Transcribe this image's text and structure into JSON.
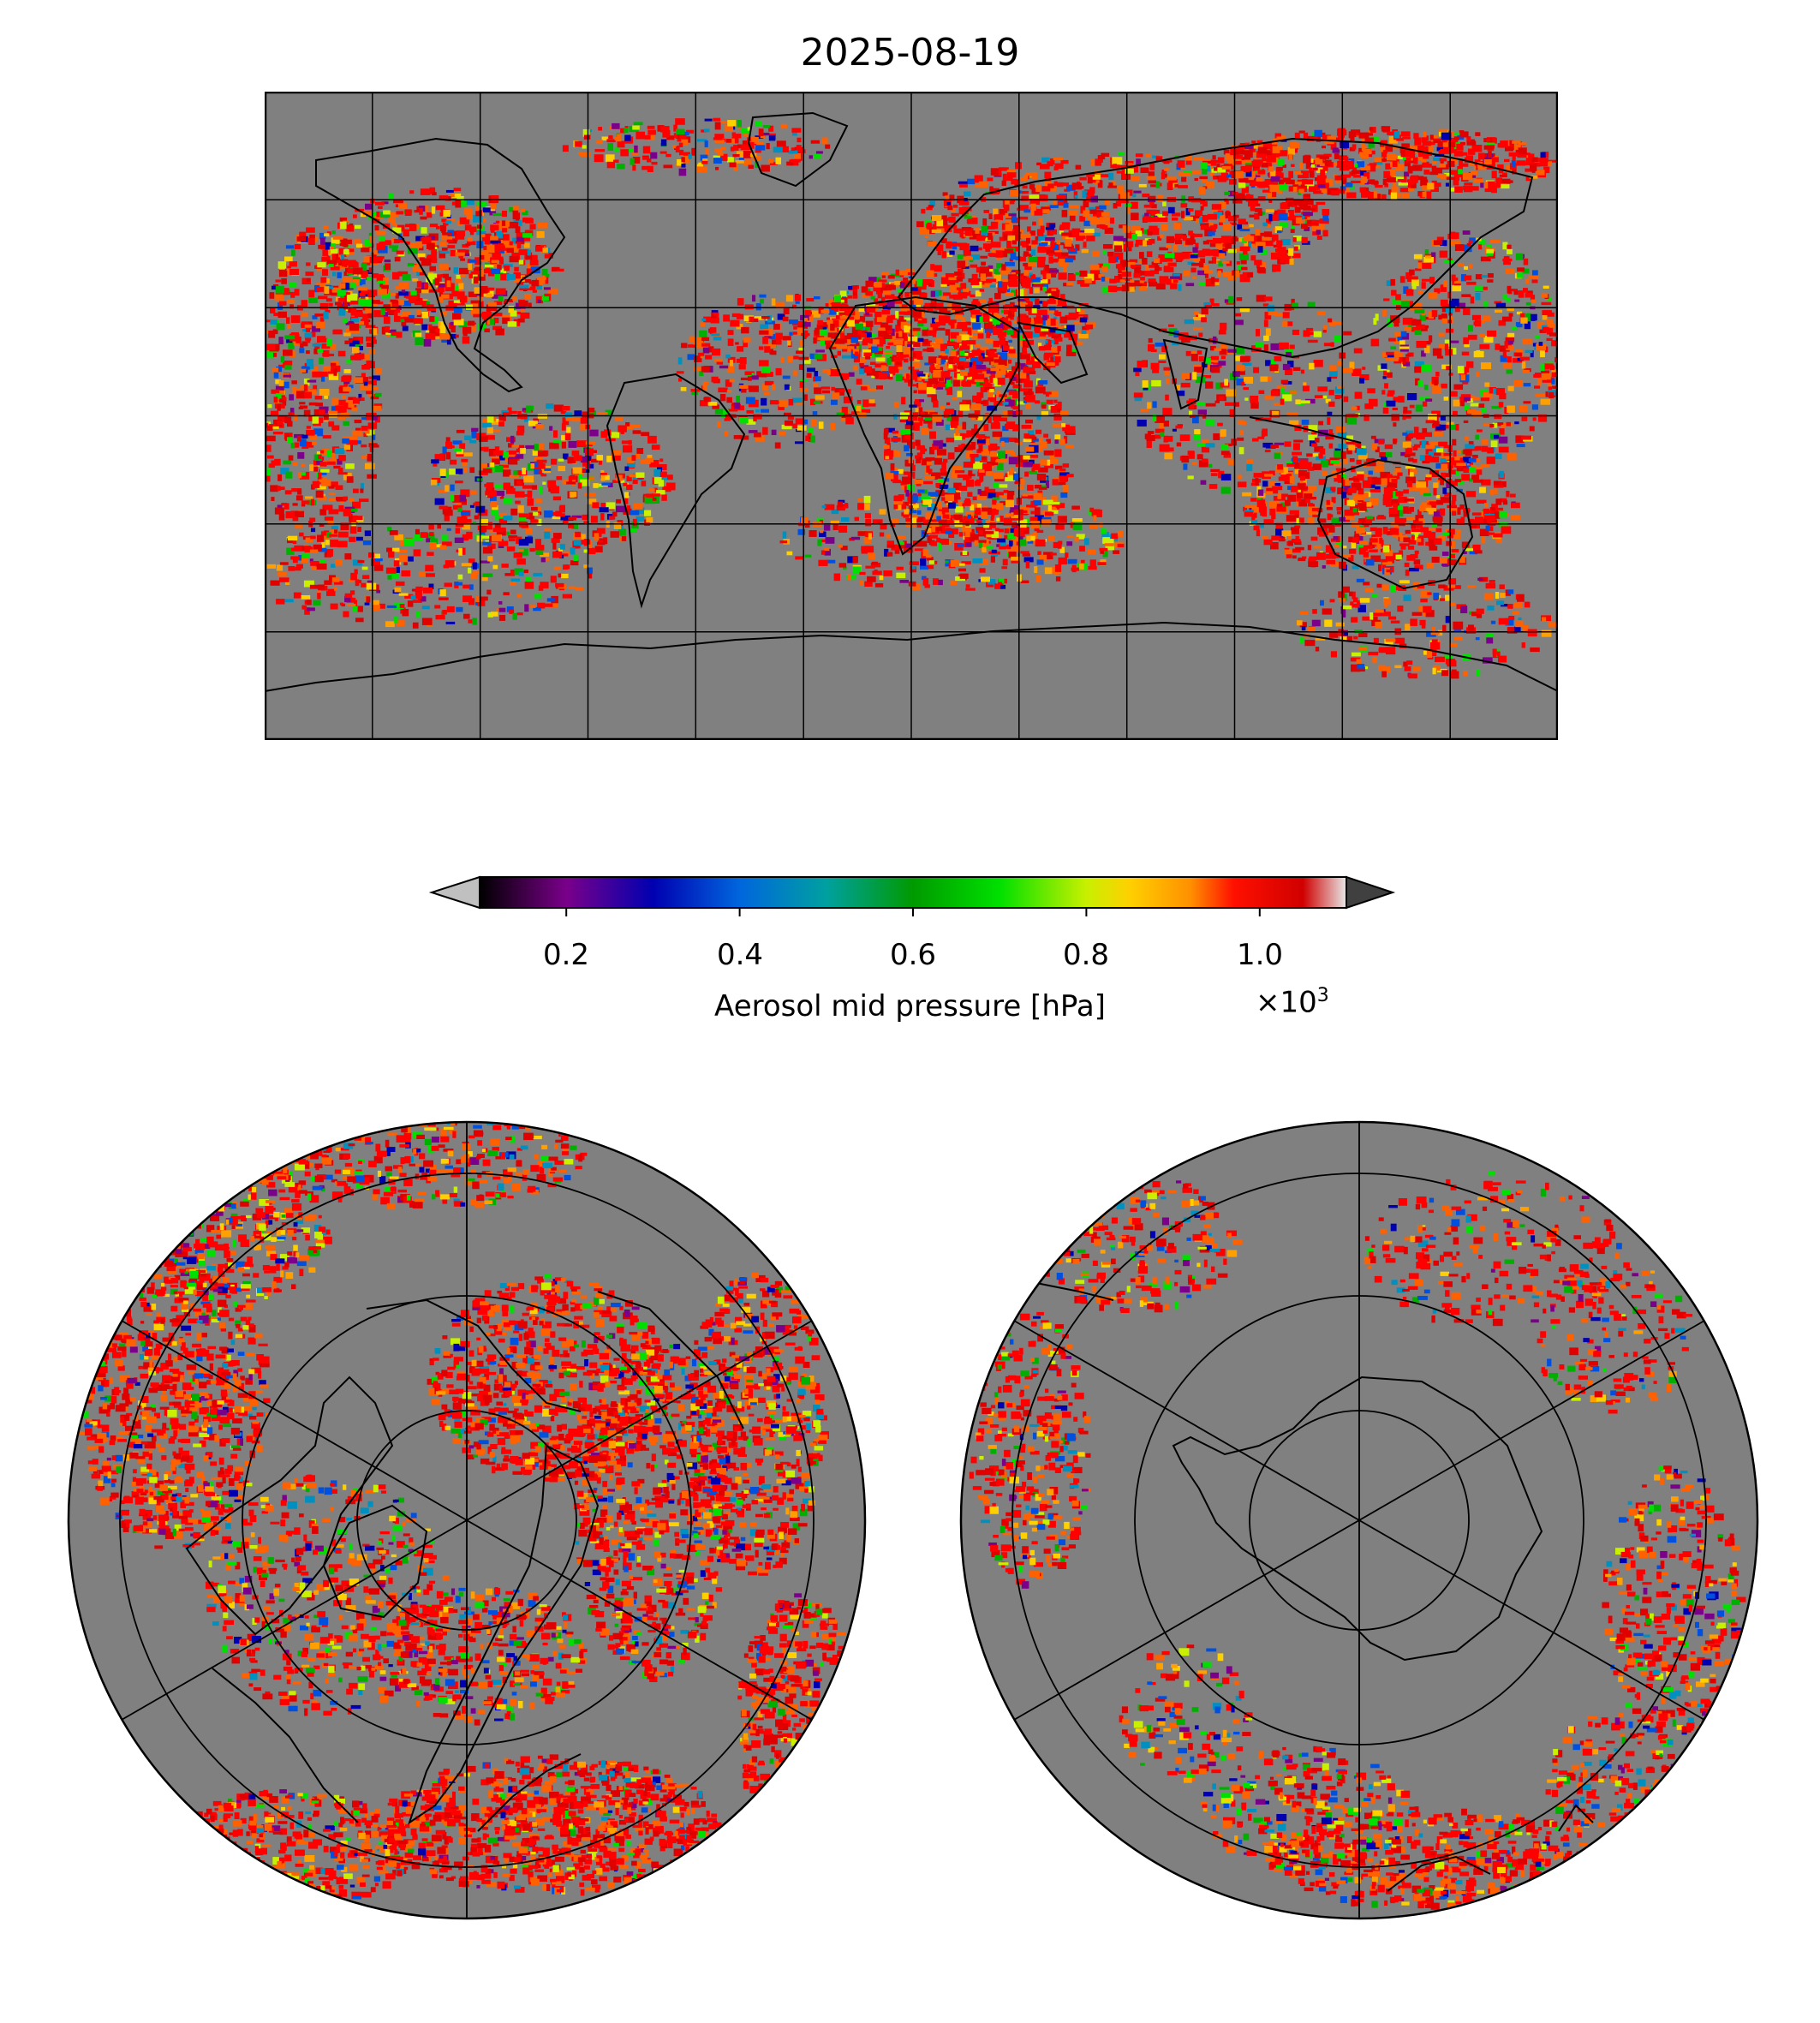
{
  "title": "2025-08-19",
  "colors": {
    "missing": "#808080",
    "coast": "#000000",
    "grid": "#000000",
    "under": "#c0c0c0",
    "over": "#404040"
  },
  "colorbar": {
    "label": "Aerosol mid pressure [hPa]",
    "multiplier_base": "×10",
    "multiplier_exp": "3",
    "ticks": [
      "0.2",
      "0.4",
      "0.6",
      "0.8",
      "1.0"
    ],
    "tick_values": [
      0.2,
      0.4,
      0.6,
      0.8,
      1.0
    ],
    "range": [
      0.1,
      1.1
    ],
    "units": "hPa",
    "colormap": "nipy_spectral-like (black → purple → blue → teal → green → yellow → orange → red → white)",
    "extend": "both"
  },
  "panels": [
    {
      "name": "global",
      "projection": "plate-carree",
      "lon_range": [
        -180,
        180
      ],
      "lat_range": [
        -90,
        90
      ]
    },
    {
      "name": "north-polar",
      "projection": "north-polar-stereographic"
    },
    {
      "name": "south-polar",
      "projection": "south-polar-stereographic"
    }
  ]
}
